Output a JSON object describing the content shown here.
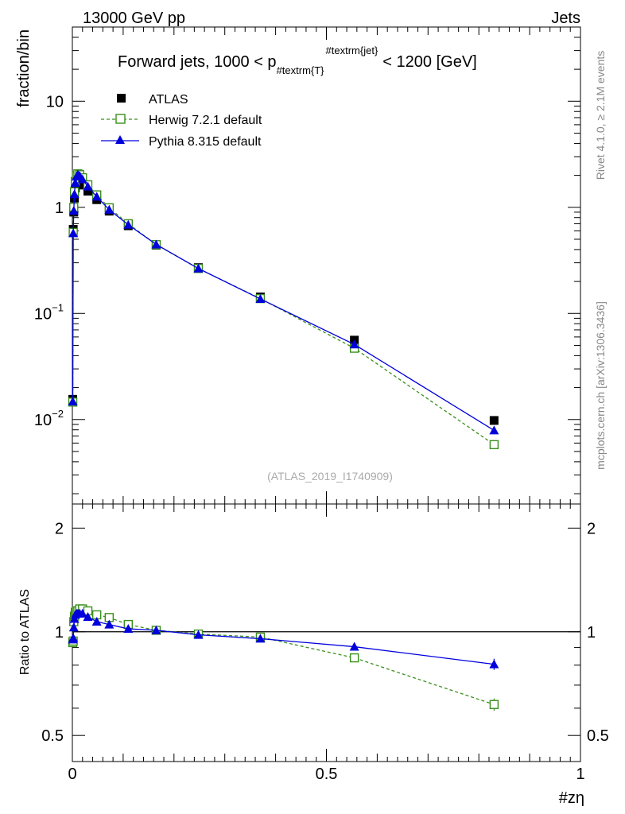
{
  "header": {
    "left": "13000 GeV pp",
    "right": "Jets"
  },
  "side_labels": {
    "rivet": "Rivet 4.1.0, ≥ 2.1M events",
    "mcplots": "mcplots.cern.ch [arXiv:1306.3436]"
  },
  "watermark": "(ATLAS_2019_I1740909)",
  "legend": {
    "atlas": "ATLAS",
    "herwig": "Herwig 7.2.1 default",
    "pythia": "Pythia 8.315 default"
  },
  "colors": {
    "atlas": "#000000",
    "herwig": "#3a8f1c",
    "pythia": "#0000dd"
  },
  "chart_data": [
    {
      "type": "scatter",
      "panel": "main",
      "title": "Forward jets, 1000 < p_#textrm{T}^#textrm{jet} < 1200 [GeV]",
      "title_parts": {
        "pre": "Forward jets, 1000 < p",
        "sub": "#textrm{T}",
        "sup": "#textrm{jet}",
        "post": "< 1200 [GeV]"
      },
      "ylabel": "fraction/bin",
      "xlabel": "",
      "yscale": "log",
      "xlim": [
        0,
        1
      ],
      "ylim": [
        0.0016,
        50
      ],
      "yticks": [
        {
          "v": 0.01,
          "base": "10",
          "exp": "−2"
        },
        {
          "v": 0.1,
          "base": "10",
          "exp": "−1"
        },
        {
          "v": 1,
          "base": "1",
          "exp": ""
        },
        {
          "v": 10,
          "base": "10",
          "exp": ""
        }
      ],
      "series": [
        {
          "name": "ATLAS",
          "style": "filled-square",
          "x": [
            0.0008,
            0.0017,
            0.0028,
            0.0041,
            0.0058,
            0.008,
            0.0108,
            0.0145,
            0.02,
            0.0305,
            0.048,
            0.0725,
            0.11,
            0.165,
            0.248,
            0.37,
            0.555,
            0.83
          ],
          "y": [
            0.0155,
            0.62,
            0.9,
            1.22,
            1.52,
            1.72,
            1.8,
            1.74,
            1.62,
            1.42,
            1.18,
            0.92,
            0.67,
            0.44,
            0.27,
            0.143,
            0.056,
            0.0098
          ]
        },
        {
          "name": "Herwig 7.2.1 default",
          "style": "open-square-dashed",
          "x": [
            0.0008,
            0.0017,
            0.0028,
            0.0041,
            0.0058,
            0.008,
            0.0108,
            0.0145,
            0.02,
            0.0305,
            0.048,
            0.0725,
            0.11,
            0.165,
            0.248,
            0.37,
            0.555,
            0.83
          ],
          "y": [
            0.0146,
            0.58,
            1.0,
            1.4,
            1.75,
            1.98,
            2.07,
            2.03,
            1.9,
            1.63,
            1.31,
            0.99,
            0.7,
            0.445,
            0.265,
            0.138,
            0.047,
            0.0058
          ]
        },
        {
          "name": "Pythia 8.315 default",
          "style": "filled-triangle-solid",
          "x": [
            0.0008,
            0.0017,
            0.0028,
            0.0041,
            0.0058,
            0.008,
            0.0108,
            0.0145,
            0.02,
            0.0305,
            0.048,
            0.0725,
            0.11,
            0.165,
            0.248,
            0.37,
            0.555,
            0.83
          ],
          "y": [
            0.0148,
            0.57,
            0.93,
            1.33,
            1.7,
            1.95,
            2.04,
            1.98,
            1.84,
            1.57,
            1.26,
            0.95,
            0.685,
            0.447,
            0.265,
            0.137,
            0.051,
            0.0079
          ]
        }
      ]
    },
    {
      "type": "line",
      "panel": "ratio",
      "ylabel": "Ratio to ATLAS",
      "xlabel": "#zη",
      "yscale": "log",
      "xlim": [
        0,
        1
      ],
      "ylim": [
        0.42,
        2.35
      ],
      "yticks": [
        {
          "v": 0.5,
          "label": "0.5"
        },
        {
          "v": 1,
          "label": "1"
        },
        {
          "v": 2,
          "label": "2"
        }
      ],
      "xticks": [
        {
          "v": 0,
          "label": "0"
        },
        {
          "v": 0.5,
          "label": "0.5"
        },
        {
          "v": 1,
          "label": "1"
        }
      ],
      "series": [
        {
          "name": "Herwig 7.2.1 default",
          "style": "open-square-dashed",
          "x": [
            0.0008,
            0.0017,
            0.0028,
            0.0041,
            0.0058,
            0.008,
            0.0108,
            0.0145,
            0.02,
            0.0305,
            0.048,
            0.0725,
            0.11,
            0.165,
            0.248,
            0.37,
            0.555,
            0.83
          ],
          "y": [
            0.93,
            0.94,
            1.07,
            1.11,
            1.14,
            1.15,
            1.15,
            1.165,
            1.165,
            1.15,
            1.12,
            1.1,
            1.05,
            1.01,
            0.985,
            0.965,
            0.84,
            0.615
          ],
          "err": [
            0.02,
            0.02,
            0.015,
            0.01,
            0.01,
            0.01,
            0.01,
            0.01,
            0.01,
            0.01,
            0.01,
            0.01,
            0.01,
            0.01,
            0.01,
            0.01,
            0.015,
            0.025
          ]
        },
        {
          "name": "Pythia 8.315 default",
          "style": "filled-triangle-solid",
          "x": [
            0.0008,
            0.0017,
            0.0028,
            0.0041,
            0.0058,
            0.008,
            0.0108,
            0.0145,
            0.02,
            0.0305,
            0.048,
            0.0725,
            0.11,
            0.165,
            0.248,
            0.37,
            0.555,
            0.83
          ],
          "y": [
            0.95,
            0.96,
            1.03,
            1.09,
            1.12,
            1.13,
            1.13,
            1.13,
            1.13,
            1.105,
            1.07,
            1.05,
            1.02,
            1.01,
            0.98,
            0.955,
            0.905,
            0.805
          ],
          "err": [
            0.02,
            0.02,
            0.015,
            0.01,
            0.01,
            0.01,
            0.01,
            0.01,
            0.01,
            0.01,
            0.01,
            0.01,
            0.01,
            0.01,
            0.01,
            0.01,
            0.015,
            0.03
          ]
        }
      ]
    }
  ]
}
